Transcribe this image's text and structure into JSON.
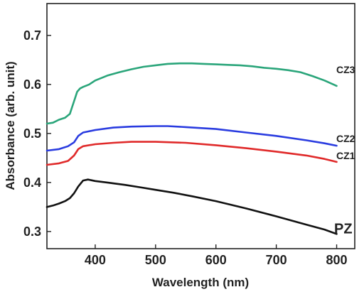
{
  "chart_data": {
    "type": "line",
    "xlabel": "Wavelength (nm)",
    "ylabel": "Absorbance (arb. unit)",
    "xlim": [
      320,
      830
    ],
    "ylim": [
      0.265,
      0.765
    ],
    "xticks": [
      400,
      500,
      600,
      700,
      800
    ],
    "yticks": [
      0.3,
      0.4,
      0.5,
      0.6,
      0.7
    ],
    "xtick_labels": [
      "400",
      "500",
      "600",
      "700",
      "800"
    ],
    "ytick_labels": [
      "0.3",
      "0.4",
      "0.5",
      "0.6",
      "0.7"
    ],
    "grid": false,
    "legend": "none (series labeled at right end of lines)",
    "series": [
      {
        "name": "CZ3",
        "color": "#2aa57a",
        "label_at": [
          490,
          0.63
        ],
        "points": [
          [
            320,
            0.52
          ],
          [
            330,
            0.522
          ],
          [
            340,
            0.528
          ],
          [
            350,
            0.532
          ],
          [
            358,
            0.54
          ],
          [
            362,
            0.555
          ],
          [
            366,
            0.57
          ],
          [
            370,
            0.585
          ],
          [
            375,
            0.592
          ],
          [
            380,
            0.595
          ],
          [
            390,
            0.6
          ],
          [
            400,
            0.608
          ],
          [
            420,
            0.618
          ],
          [
            440,
            0.625
          ],
          [
            460,
            0.631
          ],
          [
            480,
            0.636
          ],
          [
            500,
            0.639
          ],
          [
            520,
            0.642
          ],
          [
            540,
            0.643
          ],
          [
            560,
            0.643
          ],
          [
            580,
            0.642
          ],
          [
            600,
            0.641
          ],
          [
            620,
            0.64
          ],
          [
            640,
            0.639
          ],
          [
            660,
            0.637
          ],
          [
            680,
            0.634
          ],
          [
            700,
            0.632
          ],
          [
            720,
            0.629
          ],
          [
            740,
            0.625
          ],
          [
            760,
            0.617
          ],
          [
            780,
            0.608
          ],
          [
            800,
            0.597
          ]
        ]
      },
      {
        "name": "CZ2",
        "color": "#2a3ce0",
        "label_at": [
          490,
          0.49
        ],
        "points": [
          [
            320,
            0.465
          ],
          [
            340,
            0.468
          ],
          [
            355,
            0.474
          ],
          [
            365,
            0.482
          ],
          [
            372,
            0.495
          ],
          [
            380,
            0.502
          ],
          [
            400,
            0.507
          ],
          [
            430,
            0.512
          ],
          [
            460,
            0.514
          ],
          [
            500,
            0.515
          ],
          [
            520,
            0.515
          ],
          [
            550,
            0.513
          ],
          [
            600,
            0.509
          ],
          [
            650,
            0.502
          ],
          [
            700,
            0.495
          ],
          [
            750,
            0.486
          ],
          [
            780,
            0.48
          ],
          [
            800,
            0.475
          ]
        ]
      },
      {
        "name": "CZ1",
        "color": "#e02a2a",
        "label_at": [
          490,
          0.455
        ],
        "points": [
          [
            320,
            0.436
          ],
          [
            340,
            0.439
          ],
          [
            355,
            0.444
          ],
          [
            365,
            0.455
          ],
          [
            372,
            0.468
          ],
          [
            380,
            0.474
          ],
          [
            400,
            0.478
          ],
          [
            430,
            0.481
          ],
          [
            460,
            0.483
          ],
          [
            500,
            0.483
          ],
          [
            550,
            0.481
          ],
          [
            600,
            0.476
          ],
          [
            650,
            0.47
          ],
          [
            700,
            0.463
          ],
          [
            750,
            0.455
          ],
          [
            780,
            0.448
          ],
          [
            800,
            0.442
          ]
        ]
      },
      {
        "name": "PZ",
        "color": "#111111",
        "label_at": [
          490,
          0.308
        ],
        "points": [
          [
            320,
            0.35
          ],
          [
            330,
            0.353
          ],
          [
            340,
            0.357
          ],
          [
            350,
            0.362
          ],
          [
            358,
            0.368
          ],
          [
            365,
            0.378
          ],
          [
            372,
            0.392
          ],
          [
            380,
            0.404
          ],
          [
            388,
            0.406
          ],
          [
            400,
            0.403
          ],
          [
            420,
            0.4
          ],
          [
            450,
            0.395
          ],
          [
            480,
            0.389
          ],
          [
            500,
            0.385
          ],
          [
            530,
            0.379
          ],
          [
            560,
            0.372
          ],
          [
            600,
            0.362
          ],
          [
            650,
            0.347
          ],
          [
            700,
            0.331
          ],
          [
            750,
            0.314
          ],
          [
            780,
            0.304
          ],
          [
            800,
            0.295
          ]
        ]
      }
    ]
  }
}
